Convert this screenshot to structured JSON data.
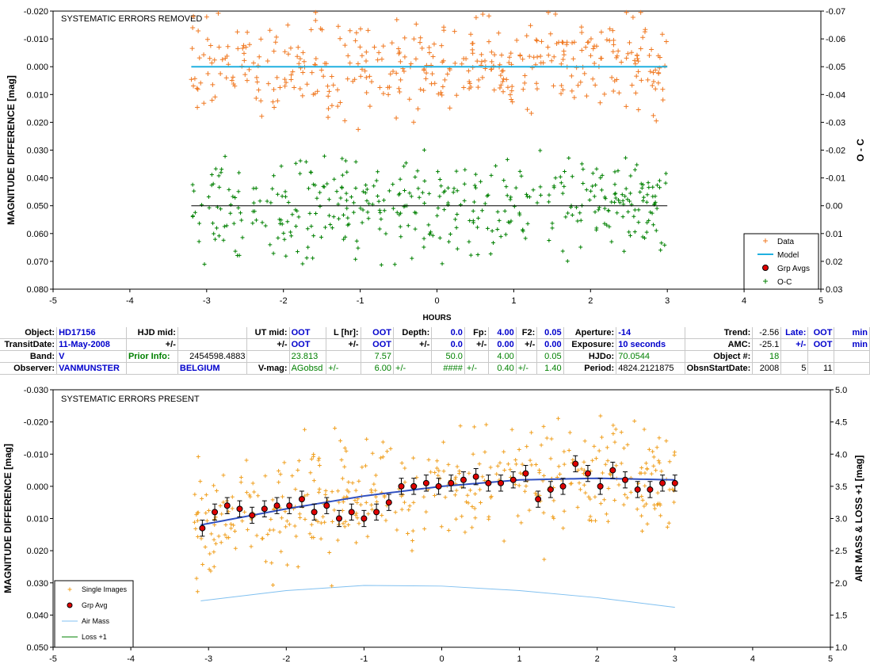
{
  "top_chart": {
    "title": "SYSTEMATIC ERRORS REMOVED",
    "ylabel": "MAGNITUDE DIFFERENCE [mag]",
    "y2label": "O - C",
    "xlabel": "HOURS",
    "legend": [
      "Data",
      "Model",
      "Grp Avgs",
      "O-C"
    ],
    "colors": {
      "data": "#f07820",
      "model": "#20b0e0",
      "grpavg": "#e00000",
      "oc": "#008000",
      "ocline": "#000000"
    }
  },
  "bottom_chart": {
    "title": "SYSTEMATIC ERRORS PRESENT",
    "ylabel": "MAGNITUDE DIFFERENCE [mag]",
    "y2label": "AIR MASS & LOSS +1 [mag]",
    "legend": [
      "Single Images",
      "Grp Avg",
      "Air Mass",
      "Loss +1"
    ],
    "colors": {
      "single": "#f0a020",
      "grpavg": "#e00000",
      "trend": "#3050c0",
      "airmass": "#80c0f0",
      "loss": "#008000"
    }
  },
  "table": {
    "rows": [
      [
        "Object:",
        "HD17156",
        "HJD mid:",
        "",
        "UT mid:",
        "OOT",
        "L [hr]:",
        "OOT",
        "Depth:",
        "0.0",
        "Fp:",
        "4.00",
        "F2:",
        "0.05",
        "Aperture:",
        "-14",
        "Trend:",
        "-2.56",
        "Late:",
        "OOT",
        "min"
      ],
      [
        "TransitDate:",
        "11-May-2008",
        "+/-",
        "",
        "+/-",
        "OOT",
        "+/-",
        "OOT",
        "+/-",
        "0.0",
        "+/-",
        "0.00",
        "+/-",
        "0.00",
        "Exposure:",
        "10 seconds",
        "AMC:",
        "-25.1",
        "+/-",
        "OOT",
        "min"
      ],
      [
        "Band:",
        "V",
        "Prior Info:",
        "2454598.4883",
        "",
        "23.813",
        "",
        "7.57",
        "",
        "50.0",
        "",
        "4.00",
        "",
        "0.05",
        "HJDo:",
        "70.0544",
        "Object #:",
        "18",
        "",
        "",
        ""
      ],
      [
        "Observer:",
        "VANMUNSTER",
        "",
        "BELGIUM",
        "V-mag:",
        "AGobsd",
        "+/-",
        "6.00",
        "+/-",
        "####",
        "+/-",
        "0.40",
        "+/-",
        "1.40",
        "Period:",
        "4824.2121875",
        "ObsnStartDate:",
        "2008",
        "5",
        "11",
        ""
      ]
    ]
  },
  "chart_data": [
    {
      "type": "scatter",
      "title": "SYSTEMATIC ERRORS REMOVED",
      "xlabel": "HOURS",
      "ylabel": "MAGNITUDE DIFFERENCE [mag]",
      "y2label": "O - C",
      "xlim": [
        -5,
        5
      ],
      "ylim": [
        0.08,
        -0.02
      ],
      "y2lim": [
        0.03,
        -0.07
      ],
      "xticks": [
        -5,
        -4,
        -3,
        -2,
        -1,
        0,
        1,
        2,
        3,
        4,
        5
      ],
      "yticks": [
        "-0.020",
        "-0.010",
        "0.000",
        "0.010",
        "0.020",
        "0.030",
        "0.040",
        "0.050",
        "0.060",
        "0.070",
        "0.080"
      ],
      "y2ticks": [
        "-0.07",
        "-0.06",
        "-0.05",
        "-0.04",
        "-0.03",
        "-0.02",
        "-0.01",
        "0.00",
        "0.01",
        "0.02",
        "0.03"
      ],
      "legend_position": "bottom-right",
      "series": [
        {
          "name": "Data",
          "x_range": [
            -3.2,
            3.0
          ],
          "y_center": 0.0,
          "y_spread": 0.012,
          "points": 420
        },
        {
          "name": "Model",
          "line": [
            [
              -3.2,
              0.0
            ],
            [
              3.0,
              0.0
            ]
          ]
        },
        {
          "name": "O-C",
          "x_range": [
            -3.2,
            3.0
          ],
          "y_center": 0.0,
          "y_spread": 0.012,
          "points": 420
        },
        {
          "name": "O-C zero line",
          "line": [
            [
              -3.2,
              0.0
            ],
            [
              3.0,
              0.0
            ]
          ]
        }
      ]
    },
    {
      "type": "scatter",
      "title": "SYSTEMATIC ERRORS PRESENT",
      "ylabel": "MAGNITUDE DIFFERENCE [mag]",
      "y2label": "AIR MASS & LOSS +1 [mag]",
      "xlim": [
        -5,
        5
      ],
      "ylim": [
        0.05,
        -0.03
      ],
      "y2lim": [
        1.0,
        5.0
      ],
      "xticks": [
        -5,
        -4,
        -3,
        -2,
        -1,
        0,
        1,
        2,
        3,
        4,
        5
      ],
      "yticks": [
        "-0.030",
        "-0.020",
        "-0.010",
        "0.000",
        "0.010",
        "0.020",
        "0.030",
        "0.040",
        "0.050"
      ],
      "y2ticks": [
        "1.0",
        "1.5",
        "2.0",
        "2.5",
        "3.0",
        "3.5",
        "4.0",
        "4.5",
        "5.0"
      ],
      "legend_position": "bottom-left",
      "grp_avg": {
        "x": [
          -3.08,
          -2.92,
          -2.76,
          -2.6,
          -2.44,
          -2.28,
          -2.12,
          -1.96,
          -1.8,
          -1.64,
          -1.48,
          -1.32,
          -1.16,
          -1.0,
          -0.84,
          -0.68,
          -0.52,
          -0.36,
          -0.2,
          -0.04,
          0.12,
          0.28,
          0.44,
          0.6,
          0.76,
          0.92,
          1.08,
          1.24,
          1.4,
          1.56,
          1.72,
          1.88,
          2.04,
          2.2,
          2.36,
          2.52,
          2.68,
          2.84,
          3.0
        ],
        "y": [
          0.013,
          0.008,
          0.006,
          0.007,
          0.009,
          0.007,
          0.006,
          0.006,
          0.004,
          0.008,
          0.006,
          0.01,
          0.008,
          0.01,
          0.008,
          0.005,
          0.0,
          0.0,
          -0.001,
          0.0,
          -0.001,
          -0.002,
          -0.003,
          -0.001,
          -0.001,
          -0.002,
          -0.004,
          0.004,
          0.001,
          0.0,
          -0.007,
          -0.004,
          0.0,
          -0.005,
          -0.002,
          0.001,
          0.001,
          -0.001,
          -0.001
        ],
        "err": 0.0025
      },
      "trend": {
        "x": [
          -3.1,
          -2,
          -1,
          0,
          1,
          2,
          3
        ],
        "y": [
          0.012,
          0.007,
          0.003,
          0.0,
          -0.002,
          -0.0025,
          -0.002
        ]
      },
      "air_mass": {
        "x": [
          -3.1,
          -2,
          -1,
          0,
          1,
          2,
          3
        ],
        "y": [
          1.72,
          1.88,
          1.96,
          1.95,
          1.88,
          1.77,
          1.62
        ]
      },
      "single_images": {
        "x_range": [
          -3.2,
          3.0
        ],
        "spread": 0.012,
        "points": 460
      }
    }
  ]
}
